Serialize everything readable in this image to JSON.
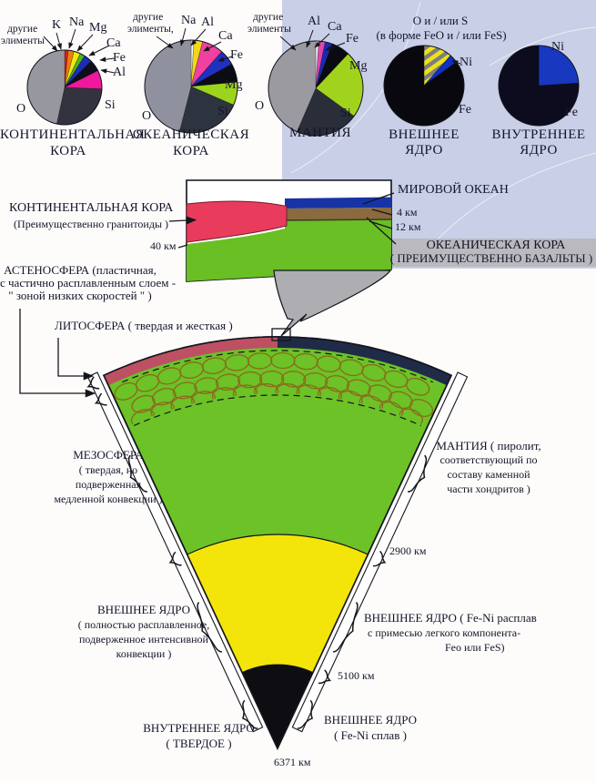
{
  "colors": {
    "panel": "#c8cfe6",
    "band": "#b9b9be",
    "funnel": "#aeaeb2",
    "mantle_green": "#6cc226",
    "outer_core_yellow": "#f3e50a",
    "inner_core_black": "#0d0d12",
    "crust_left": "#bd5063",
    "crust_right": "#1f2b47",
    "inset_red": "#e93b5c",
    "inset_green": "#69bf23",
    "inset_blue": "#1733a6",
    "inset_brown": "#8a6a3e"
  },
  "pies": {
    "p1": {
      "caption1": "КОНТИНЕНТАЛЬНАЯ",
      "caption2": "КОРА",
      "other1": "другие",
      "other2": "элименты",
      "K": "K",
      "Na": "Na",
      "Mg": "Mg",
      "Ca": "Ca",
      "Fe": "Fe",
      "Al": "Al",
      "O": "O",
      "Si": "Si"
    },
    "p2": {
      "caption1": "ОКЕАНИЧЕСКАЯ",
      "caption2": "КОРА",
      "other1": "другие",
      "other2": "элименты,",
      "Na": "Na",
      "Al": "Al",
      "Ca": "Ca",
      "Fe": "Fe",
      "Mg": "Mg",
      "O": "O",
      "Si": "Si"
    },
    "p3": {
      "caption": "МАНТИЯ",
      "other1": "другие",
      "other2": "элименты",
      "Al": "Al",
      "Ca": "Ca",
      "Fe": "Fe",
      "Mg": "Mg",
      "O": "O",
      "Si": "Si"
    },
    "p4": {
      "caption1": "ВНЕШНЕЕ",
      "caption2": "ЯДРО",
      "top1": "О и / или S",
      "top2": "(в форме FeO и / или FeS)",
      "Ni": "Ni",
      "Fe": "Fe"
    },
    "p5": {
      "caption1": "ВНУТРЕННЕЕ",
      "caption2": "ЯДРО",
      "Ni": "Ni",
      "Fe": "Fe"
    }
  },
  "inset": {
    "cont1": "КОНТИНЕНТАЛЬНАЯ КОРА",
    "cont2": "(Преимущественно гранитоиды )",
    "d40": "40 км",
    "ocean": "МИРОВОЙ ОКЕАН",
    "d4": "4 км",
    "d12": "12 км",
    "oce1": "ОКЕАНИЧЕСКАЯ КОРА",
    "oce2": "( ПРЕИМУЩЕСТВЕННО БАЗАЛЬТЫ )"
  },
  "wedge": {
    "asth1": "АСТЕНОСФЕРА (пластичная,",
    "asth2": "с частично расплавленным слоем -",
    "asth3": "\" зоной низких скоростей \" )",
    "litho": "ЛИТОСФЕРА ( твердая и жесткая )",
    "meso1": "МЕЗОСФЕРА",
    "meso2": "( твердая, но",
    "meso3": "подверженная",
    "meso4": "медленной конвекции )",
    "mantle1": "МАНТИЯ ( пиролит,",
    "mantle2": "соответствующий по",
    "mantle3": "составу каменной",
    "mantle4": "части хондритов )",
    "d2900": "2900 км",
    "oc_l1": "ВНЕШНЕЕ ЯДРО",
    "oc_l2": "( полностью расплавленное,",
    "oc_l3": "подверженное интенсивной",
    "oc_l4": "конвекции )",
    "oc_r1": "ВНЕШНЕЕ ЯДРО ( Fe-Ni  расплав",
    "oc_r2": "с примесью легкого компонента-",
    "oc_r3": "Feo или FeS)",
    "d5100": "5100 км",
    "ic_l1": "ВНУТРЕННЕЕ ЯДРО",
    "ic_l2": "( ТВЕРДОЕ )",
    "ic_r1": "ВНЕШНЕЕ ЯДРО",
    "ic_r2": "( Fe-Ni  сплав )",
    "d6371": "6371 км"
  },
  "chart_data": [
    {
      "type": "pie",
      "id": "continental-crust",
      "title": "КОНТИНЕНТАЛЬНАЯ КОРА",
      "unit": "%",
      "start_angle": -90,
      "clockwise": true,
      "slices": [
        {
          "label": "другие элименты",
          "value": 1.5,
          "color": "#d02418"
        },
        {
          "label": "K",
          "value": 2.6,
          "color": "#ef7d10"
        },
        {
          "label": "Na",
          "value": 2.8,
          "color": "#f0ea0a"
        },
        {
          "label": "Mg",
          "value": 2.1,
          "color": "#50b41e"
        },
        {
          "label": "Ca",
          "value": 3.6,
          "color": "#1c2cb4"
        },
        {
          "label": "Fe",
          "value": 5.0,
          "color": "#0e0e1a"
        },
        {
          "label": "Al",
          "value": 8.1,
          "color": "#f0189c"
        },
        {
          "label": "Si",
          "value": 27.7,
          "color": "#32333f"
        },
        {
          "label": "O",
          "value": 46.6,
          "color": "#97979f"
        }
      ]
    },
    {
      "type": "pie",
      "id": "oceanic-crust",
      "title": "ОКЕАНИЧЕСКАЯ КОРА",
      "unit": "%",
      "start_angle": -90,
      "clockwise": true,
      "slices": [
        {
          "label": "другие элименты",
          "value": 1.0,
          "color": "#f8f8f6"
        },
        {
          "label": "Na",
          "value": 3.0,
          "color": "#f0d818"
        },
        {
          "label": "Al",
          "value": 7.5,
          "color": "#f040a0"
        },
        {
          "label": "Ca",
          "value": 5.5,
          "color": "#2030c0"
        },
        {
          "label": "Fe",
          "value": 6.5,
          "color": "#0c0c14"
        },
        {
          "label": "Mg",
          "value": 8.0,
          "color": "#9cd41c"
        },
        {
          "label": "Si",
          "value": 22.5,
          "color": "#2e3340"
        },
        {
          "label": "O",
          "value": 46.0,
          "color": "#8f929e"
        }
      ]
    },
    {
      "type": "pie",
      "id": "mantle",
      "title": "МАНТИЯ",
      "unit": "%",
      "start_angle": -90,
      "clockwise": true,
      "slices": [
        {
          "label": "другие элименты",
          "value": 1.0,
          "color": "#f8f8f6"
        },
        {
          "label": "Al",
          "value": 2.2,
          "color": "#e048b0"
        },
        {
          "label": "Ca",
          "value": 2.5,
          "color": "#2028b0"
        },
        {
          "label": "Fe",
          "value": 6.3,
          "color": "#0a0a12"
        },
        {
          "label": "Mg",
          "value": 23.0,
          "color": "#a2d31c"
        },
        {
          "label": "Si",
          "value": 21.5,
          "color": "#2a2e38"
        },
        {
          "label": "O",
          "value": 43.5,
          "color": "#9a9aa0"
        }
      ]
    },
    {
      "type": "pie",
      "id": "outer-core",
      "title": "ВНЕШНЕЕ ЯДРО",
      "unit": "%",
      "start_angle": -90,
      "clockwise": true,
      "slices": [
        {
          "label": "О и / или S (в форме FeO и / или FeS)",
          "value": 11.5,
          "color": "#eee214",
          "hatch": true
        },
        {
          "label": "Ni",
          "value": 3.5,
          "color": "#1030c0"
        },
        {
          "label": "Fe",
          "value": 85.0,
          "color": "#08080e"
        }
      ]
    },
    {
      "type": "pie",
      "id": "inner-core",
      "title": "ВНУТРЕННЕЕ ЯДРО",
      "unit": "%",
      "start_angle": -90,
      "clockwise": true,
      "slices": [
        {
          "label": "Ni",
          "value": 24.0,
          "color": "#1838c0"
        },
        {
          "label": "Fe",
          "value": 76.0,
          "color": "#0c0c1e"
        }
      ]
    }
  ]
}
